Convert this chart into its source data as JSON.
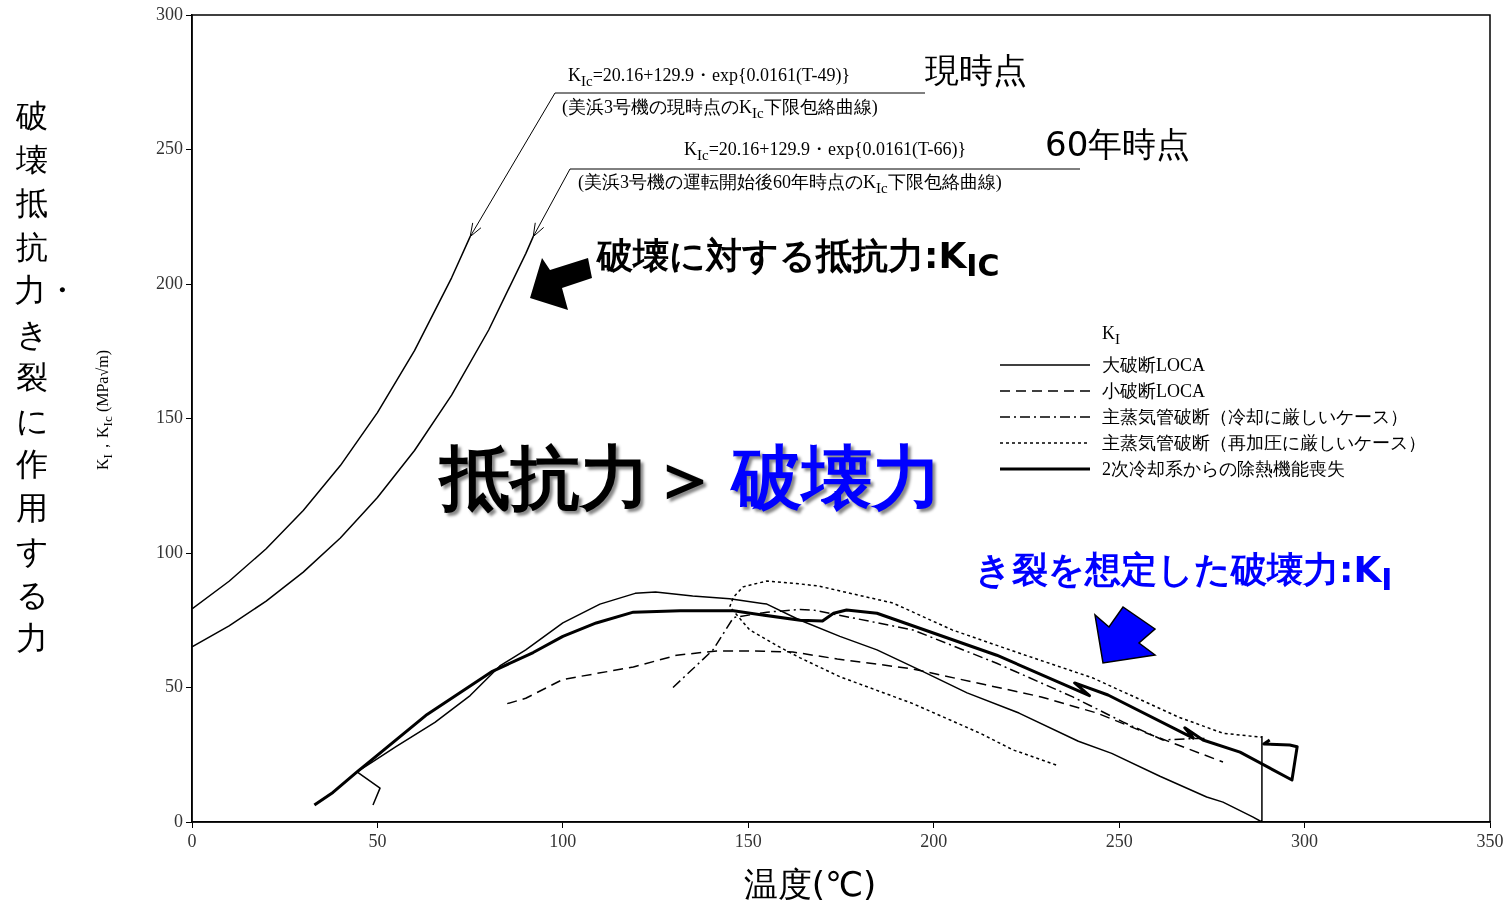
{
  "chart_data": {
    "type": "line",
    "ylabel": "破壊抵抗力・き裂に作用する力",
    "xlabel": "温度(℃)",
    "legend_title": "K$_{I}$",
    "legend": "right",
    "xlim": [
      0,
      350
    ],
    "xticks": [
      0,
      50,
      100,
      150,
      200,
      250,
      300,
      350
    ],
    "ylim": [
      0,
      300
    ],
    "yticks": [
      0,
      50,
      100,
      150,
      200,
      250,
      300
    ],
    "annotations": [
      {
        "text": "K$_{Ic}$=20.16+129.9・exp{0.0161(T-49)}",
        "x": 75,
        "y": 217.6
      },
      "現時点",
      "(美浜3号機の現時点のK$_{Ic}$下限包絡曲線)",
      {
        "text": "K$_{Ic}$=20.16+129.9・exp{0.0161(T-66)}",
        "x": 92,
        "y": 217.6
      },
      "60年時点",
      "(美浜3号機の運転開始後60年時点のK$_{Ic}$下限包絡曲線)",
      "破壊に対する抵抗力:K$_{IC}$",
      "抵抗力＞",
      "破壊力",
      "き裂を想定した破壊力:K$_{I}$",
      "K$_{I}$，K$_{Ic}$ (MPa√m)"
    ],
    "series": [
      {
        "color": "#000000",
        "line_style": "solid",
        "x": [
          0,
          10,
          20,
          30,
          40,
          50,
          60,
          70,
          75
        ],
        "values": [
          79.2,
          89.5,
          101.6,
          115.8,
          132.5,
          152.2,
          175.2,
          202.3,
          217.6
        ]
      },
      {
        "color": "#000000",
        "line_style": "solid",
        "x": [
          0,
          10,
          20,
          30,
          40,
          50,
          60,
          70,
          80,
          90,
          92
        ],
        "values": [
          65.1,
          72.9,
          82.1,
          92.9,
          105.6,
          120.6,
          138.1,
          158.7,
          182.9,
          211.3,
          217.6
        ]
      },
      {
        "name": "大破断LOCA",
        "color": "#000000",
        "line_style": "solid",
        "x": [
          48.8,
          50.7,
          44.5,
          55,
          65.5,
          75,
          83,
          90,
          100,
          110,
          119.5,
          125,
          135,
          145,
          155,
          164,
          174.7,
          184.7,
          197,
          209,
          223,
          239,
          248,
          261,
          273.6,
          278,
          286,
          288.5,
          288.5
        ],
        "values": [
          6.3,
          12.6,
          18.6,
          28,
          37,
          47,
          58,
          64,
          74,
          81,
          85,
          85.5,
          84,
          83,
          81,
          75,
          69,
          64,
          56,
          48,
          40.5,
          30,
          25.5,
          17,
          9.3,
          7.4,
          1.9,
          0,
          32
        ]
      },
      {
        "name": "小破断LOCA",
        "color": "#000000",
        "line_style": "dashed",
        "x": [
          85,
          90,
          100,
          119,
          130.7,
          141.5,
          150,
          162,
          174,
          194,
          214,
          229,
          244,
          257.5,
          278
        ],
        "values": [
          44,
          46,
          53,
          57.6,
          62,
          63.6,
          63.6,
          63.2,
          60.6,
          57,
          51,
          46.5,
          40.5,
          33,
          22.3
        ]
      },
      {
        "name": "主蒸気管破断（冷却に厳しいケース）",
        "color": "#000000",
        "line_style": "dashdot",
        "x": [
          129.7,
          140.5,
          146,
          155,
          164,
          167.5,
          194.4,
          217,
          237.5,
          251,
          261.8,
          270,
          274
        ],
        "values": [
          50,
          64,
          76,
          78,
          79,
          78.8,
          71.4,
          59,
          46.5,
          37.2,
          30.5,
          31,
          31
        ]
      },
      {
        "name": "主蒸気管破断（再加圧に厳しいケース）",
        "color": "#000000",
        "line_style": "dotted",
        "x": [
          233,
          221.4,
          212.5,
          194.4,
          174.7,
          164,
          158.5,
          150.4,
          145,
          146,
          148.6,
          155,
          164,
          169,
          189,
          205,
          223,
          243,
          266,
          278,
          288.5
        ],
        "values": [
          21.2,
          26.8,
          33,
          44,
          54,
          61,
          65,
          71.4,
          80,
          83.6,
          87.4,
          89.6,
          88.5,
          87.7,
          81.4,
          71.4,
          62.8,
          53.5,
          39,
          33,
          31.5
        ]
      },
      {
        "name": "2次冷却系からの除熱機能喪失",
        "color": "#000000",
        "line_style": "solid",
        "x": [
          33,
          38,
          44.5,
          63.4,
          81,
          92,
          100,
          109,
          119,
          131.6,
          146,
          164,
          170,
          173,
          176.5,
          184.7,
          217,
          242,
          238,
          247,
          270,
          267.7,
          272.6,
          282.6,
          296.6,
          298,
          296,
          289,
          290.6
        ],
        "values": [
          6.3,
          11,
          18.6,
          40,
          56,
          63,
          69,
          74,
          78,
          78.5,
          78.5,
          75,
          74.7,
          77.6,
          78.8,
          77.6,
          62,
          47,
          51.7,
          47.2,
          31.2,
          35,
          30.5,
          26,
          15.6,
          28,
          28.6,
          29,
          30.5
        ]
      }
    ]
  }
}
